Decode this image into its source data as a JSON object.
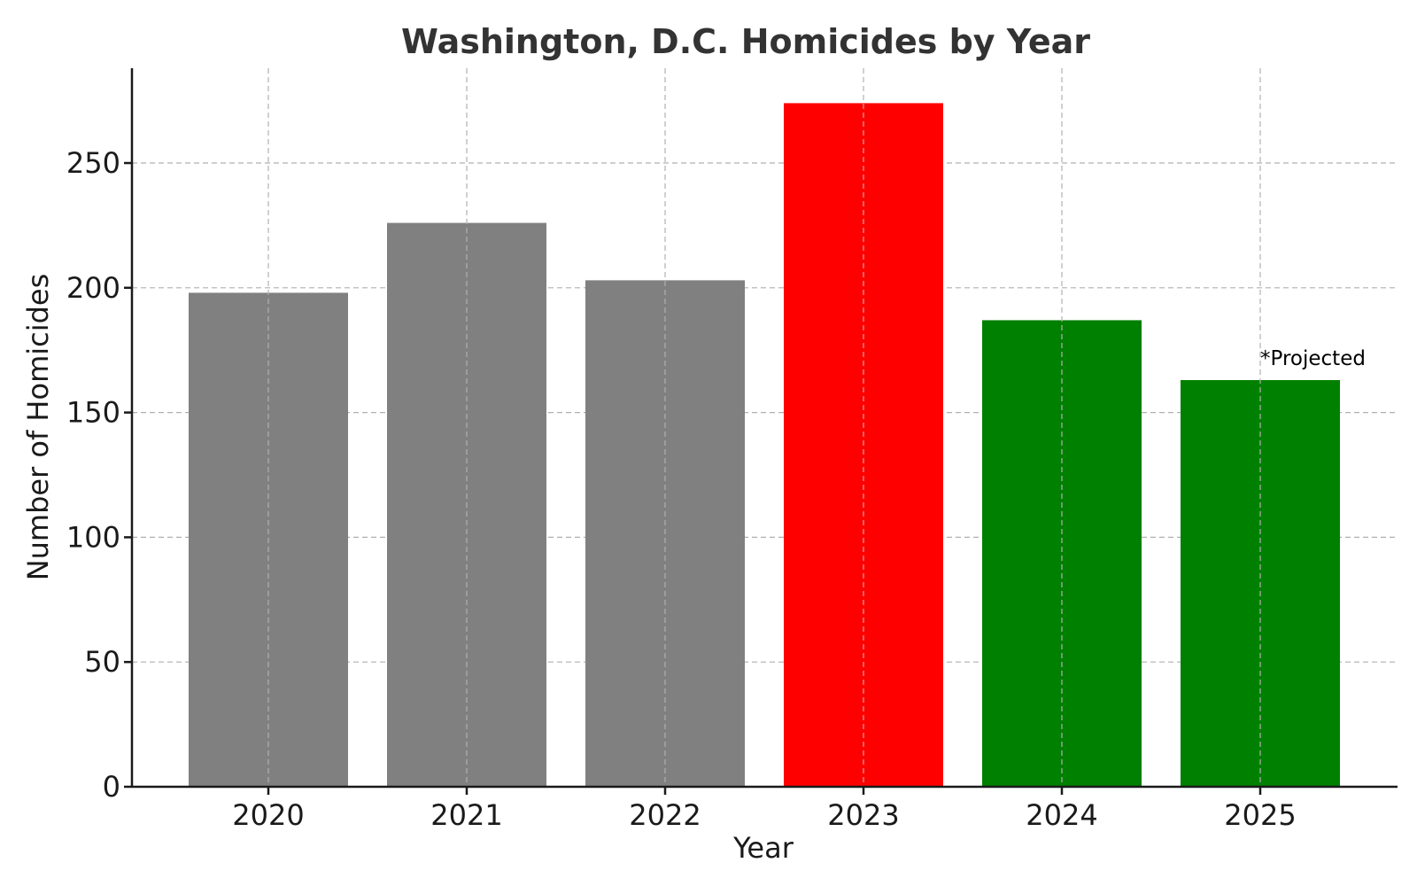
{
  "chart_data": {
    "type": "bar",
    "title": "Washington, D.C. Homicides by Year",
    "xlabel": "Year",
    "ylabel": "Number of Homicides",
    "categories": [
      "2020",
      "2021",
      "2022",
      "2023",
      "2024",
      "2025"
    ],
    "values": [
      198,
      226,
      203,
      274,
      187,
      163
    ],
    "colors": [
      "#808080",
      "#808080",
      "#808080",
      "#ff0000",
      "#008000",
      "#008000"
    ],
    "yticks": [
      0,
      50,
      100,
      150,
      200,
      250
    ],
    "ylim": [
      0,
      288
    ],
    "grid": true,
    "annotations": [
      {
        "category": "2025",
        "text": "*Projected"
      }
    ]
  }
}
